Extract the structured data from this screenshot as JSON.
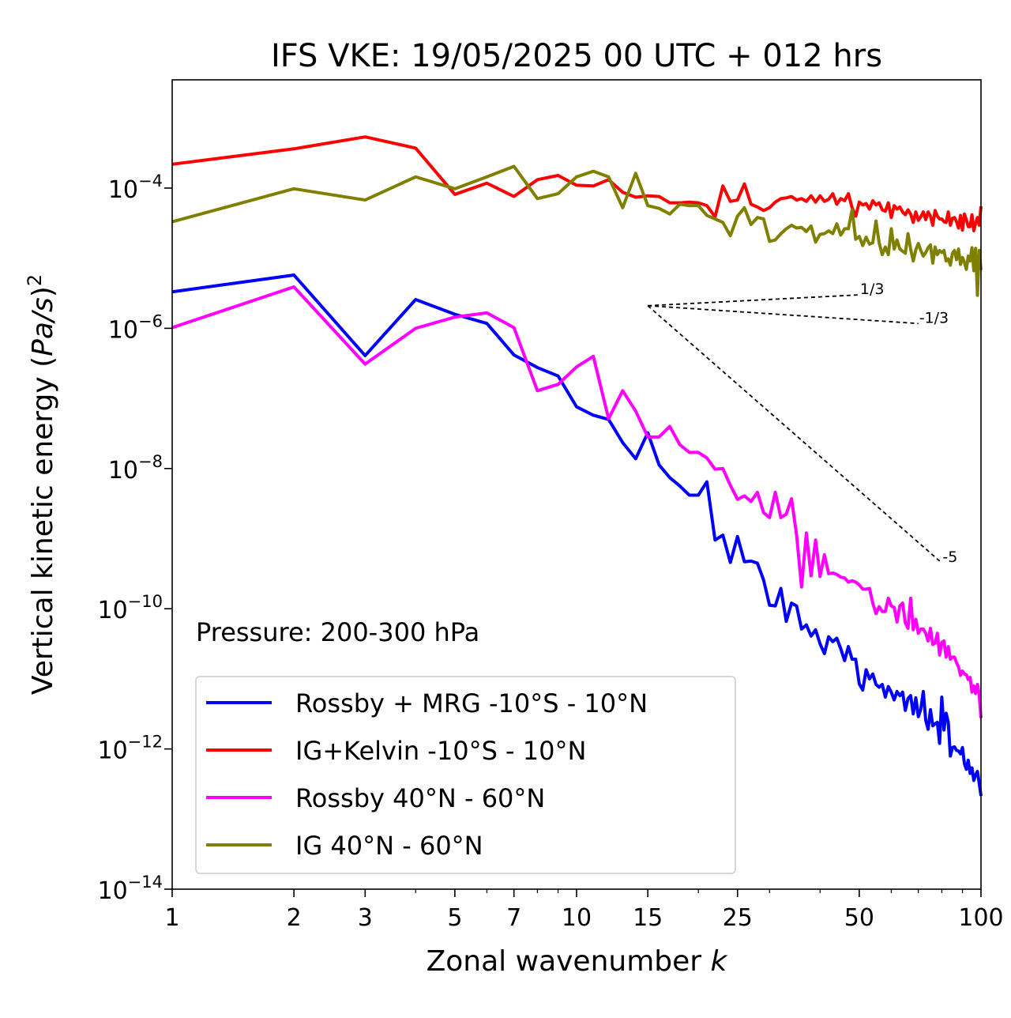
{
  "chart_data": {
    "type": "line",
    "title": "IFS VKE: 19/05/2025 00 UTC + 012 hrs",
    "xlabel_prefix": "Zonal wavenumber ",
    "xlabel_var": "k",
    "ylabel_prefix": "Vertical kinetic energy (",
    "ylabel_var": "Pa/s",
    "ylabel_suffix": ")",
    "ylabel_exp": "2",
    "xscale": "log",
    "yscale": "log",
    "xlim": [
      1,
      100
    ],
    "ylim": [
      1e-14,
      0.0035
    ],
    "x_tick_values": [
      1,
      2,
      3,
      5,
      7,
      10,
      15,
      25,
      50,
      100
    ],
    "x_tick_labels": [
      "1",
      "2",
      "3",
      "5",
      "7",
      "10",
      "15",
      "25",
      "50",
      "100"
    ],
    "y_ticks": [
      {
        "value": 0.0001,
        "base": "10",
        "exp": "−4"
      },
      {
        "value": 1e-06,
        "base": "10",
        "exp": "−6"
      },
      {
        "value": 1e-08,
        "base": "10",
        "exp": "−8"
      },
      {
        "value": 1e-10,
        "base": "10",
        "exp": "−10"
      },
      {
        "value": 1e-12,
        "base": "10",
        "exp": "−12"
      },
      {
        "value": 1e-14,
        "base": "10",
        "exp": "−14"
      }
    ],
    "annotation": "Pressure: 200-300 hPa",
    "legend_position": "lower-left",
    "grid": false,
    "series": [
      {
        "name": "Rossby + MRG -10°S - 10°N",
        "color": "#0000ff"
      },
      {
        "name": "IG+Kelvin -10°S - 10°N",
        "color": "#ff0000"
      },
      {
        "name": "Rossby 40°N - 60°N",
        "color": "#ff00ff"
      },
      {
        "name": "IG 40°N - 60°N",
        "color": "#808000"
      }
    ],
    "reference_lines": [
      {
        "label": "1/3",
        "x": [
          15,
          50
        ],
        "y": [
          2.1e-06,
          3e-06
        ]
      },
      {
        "label": "-1/3",
        "x": [
          15,
          70
        ],
        "y": [
          2.1e-06,
          1.17e-06
        ]
      },
      {
        "label": "-5",
        "x": [
          15,
          80
        ],
        "y": [
          2.1e-06,
          4.5e-10
        ]
      }
    ]
  }
}
